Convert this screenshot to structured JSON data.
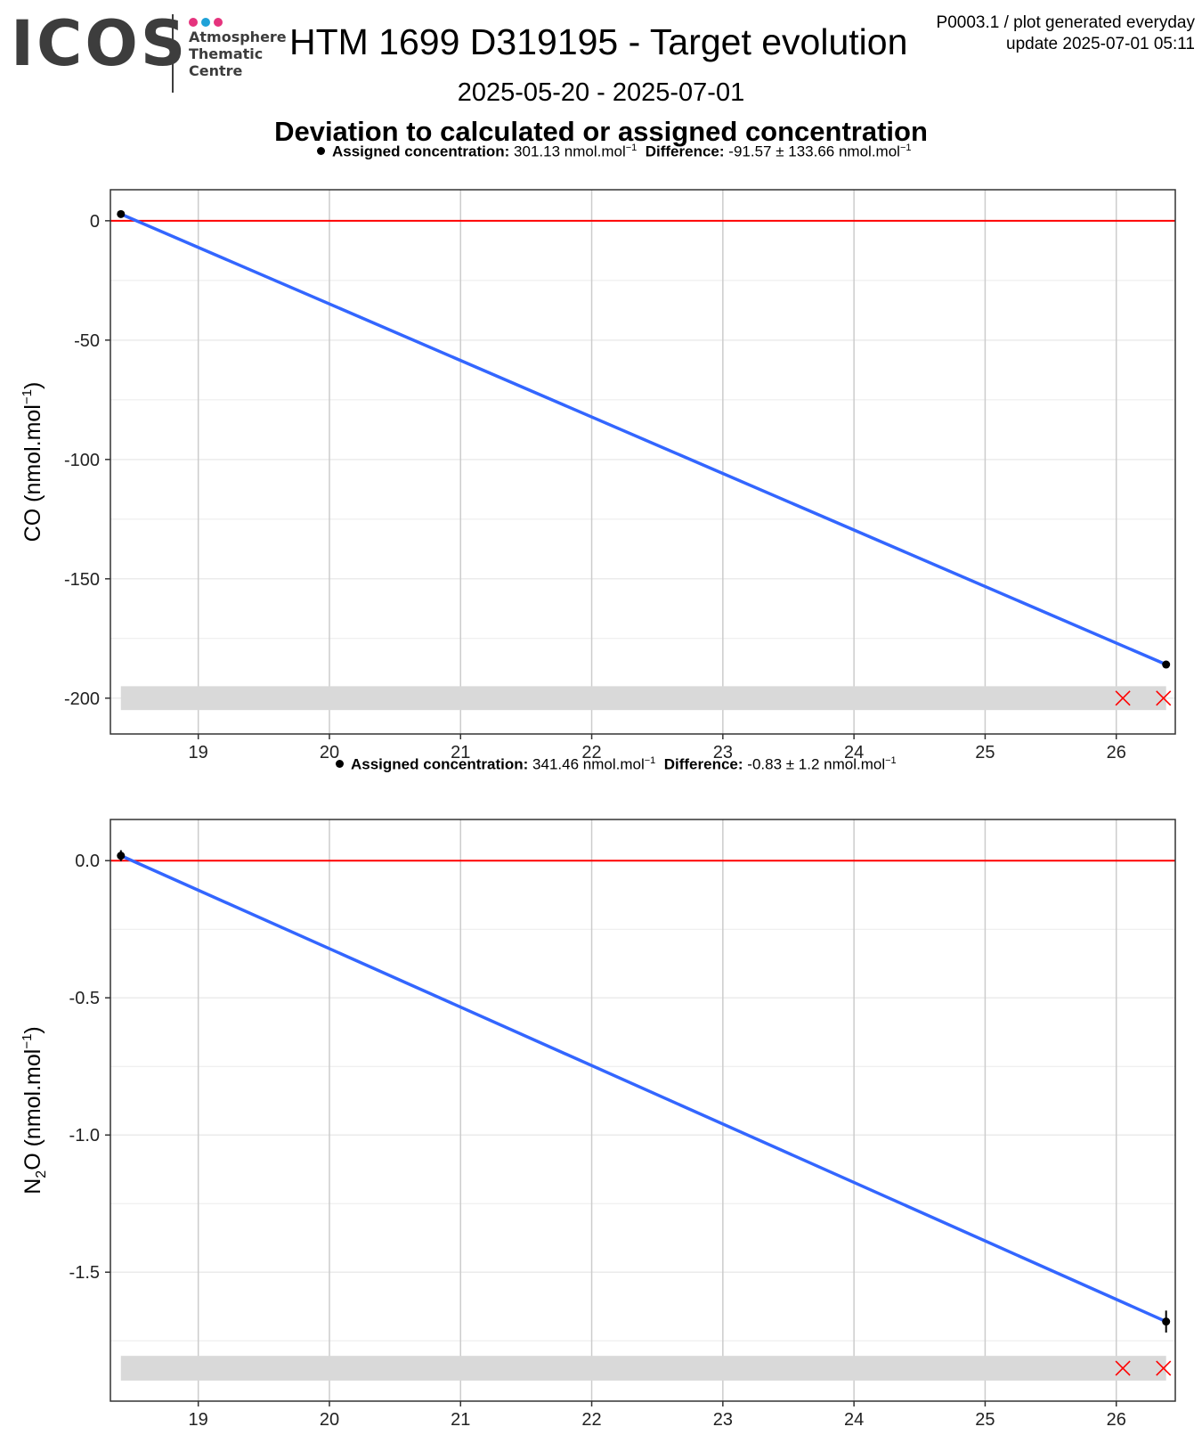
{
  "header": {
    "logo_text": "ICOS",
    "logo_sub": [
      "Atmosphere",
      "Thematic",
      "Centre"
    ],
    "logo_dot_colors": [
      "#e5337d",
      "#1fa2d8",
      "#e5337d"
    ],
    "title": "HTM 1699 D319195 - Target evolution",
    "date_range": "2025-05-20 - 2025-07-01",
    "subtitle": "Deviation to calculated or assigned concentration",
    "top_right_line1": "P0003.1 / plot generated everyday",
    "top_right_line2": "update  2025-07-01 05:11"
  },
  "colors": {
    "fit_line": "#3366ff",
    "zero_line": "#ff0000",
    "flag_marker": "#ff0000",
    "flag_band": "#d9d9d9",
    "point": "#000000",
    "grid_major": "#cccccc",
    "grid_minor": "#ebebeb"
  },
  "chart_data": [
    {
      "type": "scatter",
      "legend": {
        "assigned_label": "Assigned concentration:",
        "assigned_value": "301.13 nmol.mol",
        "diff_label": "Difference:",
        "diff_value": "-91.57 ± 133.66 nmol.mol",
        "unit_exp": "−1"
      },
      "ylabel_base": "CO",
      "ylabel_unit": " (nmol.mol",
      "ylabel_exp": "−1",
      "xlim": [
        18.33,
        26.45
      ],
      "ylim": [
        -215,
        13
      ],
      "xticks": [
        19,
        20,
        21,
        22,
        23,
        24,
        25,
        26
      ],
      "yticks": [
        0,
        -50,
        -100,
        -150,
        -200
      ],
      "ytick_labels": [
        "0",
        "-50",
        "-100",
        "-150",
        "-200"
      ],
      "y_minor": [
        -25,
        -75,
        -125,
        -175
      ],
      "points": [
        {
          "x": 18.41,
          "y": 2.8,
          "err": 0.6
        },
        {
          "x": 26.38,
          "y": -185.9,
          "err": 0.6
        }
      ],
      "fit": [
        {
          "x": 18.41,
          "y": 2.8
        },
        {
          "x": 26.38,
          "y": -185.9
        }
      ],
      "flag_band": {
        "x0": 18.41,
        "x1": 26.38,
        "y0": -205,
        "y1": -195
      },
      "flags": [
        {
          "x": 26.05,
          "y": -200
        },
        {
          "x": 26.36,
          "y": -200
        }
      ],
      "grid": true
    },
    {
      "type": "scatter",
      "legend": {
        "assigned_label": "Assigned concentration:",
        "assigned_value": "341.46 nmol.mol",
        "diff_label": "Difference:",
        "diff_value": "-0.83 ± 1.2 nmol.mol",
        "unit_exp": "−1"
      },
      "ylabel_base": "N",
      "ylabel_sub": "2",
      "ylabel_mid": "O",
      "ylabel_unit": " (nmol.mol",
      "ylabel_exp": "−1",
      "xlim": [
        18.33,
        26.45
      ],
      "ylim": [
        -1.97,
        0.15
      ],
      "xticks": [
        19,
        20,
        21,
        22,
        23,
        24,
        25,
        26
      ],
      "yticks": [
        0.0,
        -0.5,
        -1.0,
        -1.5
      ],
      "ytick_labels": [
        "0.0",
        "-0.5",
        "-1.0",
        "-1.5"
      ],
      "y_minor": [
        -0.25,
        -0.75,
        -1.25,
        -1.75
      ],
      "points": [
        {
          "x": 18.41,
          "y": 0.018,
          "err": 0.02
        },
        {
          "x": 26.38,
          "y": -1.68,
          "err": 0.04
        }
      ],
      "fit": [
        {
          "x": 18.41,
          "y": 0.018
        },
        {
          "x": 26.38,
          "y": -1.68
        }
      ],
      "flag_band": {
        "x0": 18.41,
        "x1": 26.38,
        "y0": -1.895,
        "y1": -1.805
      },
      "flags": [
        {
          "x": 26.05,
          "y": -1.85
        },
        {
          "x": 26.36,
          "y": -1.85
        }
      ],
      "grid": true
    }
  ]
}
